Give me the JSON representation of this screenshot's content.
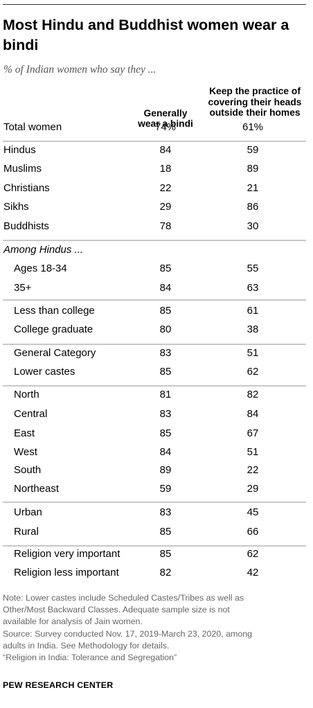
{
  "chart_data": {
    "type": "table",
    "title": "Most Hindu and Buddhist women wear a bindi",
    "subtitle": "% of Indian women who say they ...",
    "columns": [
      "Generally wear a bindi",
      "Keep the practice of covering their heads outside their homes"
    ],
    "column_header_lines": [
      [
        "Generally",
        "wear a bindi"
      ],
      [
        "Keep the practice of",
        "covering their heads",
        "outside their homes"
      ]
    ],
    "rows": [
      {
        "label": "Total women",
        "values": [
          "74%",
          "61%"
        ]
      },
      {
        "label": "Hindus",
        "values": [
          "84",
          "59"
        ]
      },
      {
        "label": "Muslims",
        "values": [
          "18",
          "89"
        ]
      },
      {
        "label": "Christians",
        "values": [
          "22",
          "21"
        ]
      },
      {
        "label": "Sikhs",
        "values": [
          "29",
          "86"
        ]
      },
      {
        "label": "Buddhists",
        "values": [
          "78",
          "30"
        ]
      },
      {
        "label": "Among Hindus ...",
        "values": [
          "",
          ""
        ]
      },
      {
        "label": "Ages 18-34",
        "values": [
          "85",
          "55"
        ]
      },
      {
        "label": "35+",
        "values": [
          "84",
          "63"
        ]
      },
      {
        "label": "Less than college",
        "values": [
          "85",
          "61"
        ]
      },
      {
        "label": "College graduate",
        "values": [
          "80",
          "38"
        ]
      },
      {
        "label": "General Category",
        "values": [
          "83",
          "51"
        ]
      },
      {
        "label": "Lower castes",
        "values": [
          "85",
          "62"
        ]
      },
      {
        "label": "North",
        "values": [
          "81",
          "82"
        ]
      },
      {
        "label": "Central",
        "values": [
          "83",
          "84"
        ]
      },
      {
        "label": "East",
        "values": [
          "85",
          "67"
        ]
      },
      {
        "label": "West",
        "values": [
          "84",
          "51"
        ]
      },
      {
        "label": "South",
        "values": [
          "89",
          "22"
        ]
      },
      {
        "label": "Northeast",
        "values": [
          "59",
          "29"
        ]
      },
      {
        "label": "Urban",
        "values": [
          "83",
          "45"
        ]
      },
      {
        "label": "Rural",
        "values": [
          "85",
          "66"
        ]
      },
      {
        "label": "Religion very important",
        "values": [
          "85",
          "62"
        ]
      },
      {
        "label": "Religion less important",
        "values": [
          "82",
          "42"
        ]
      }
    ]
  },
  "notes": [
    "Note: Lower castes include Scheduled Castes/Tribes as well as",
    "Other/Most Backward Classes. Adequate sample size is not",
    "available for analysis of Jain women.",
    "Source: Survey conducted Nov. 17, 2019-March 23, 2020, among",
    "adults in India. See Methodology for details.",
    "“Religion in India: Tolerance and Segregation”"
  ],
  "footer": "PEW RESEARCH CENTER"
}
